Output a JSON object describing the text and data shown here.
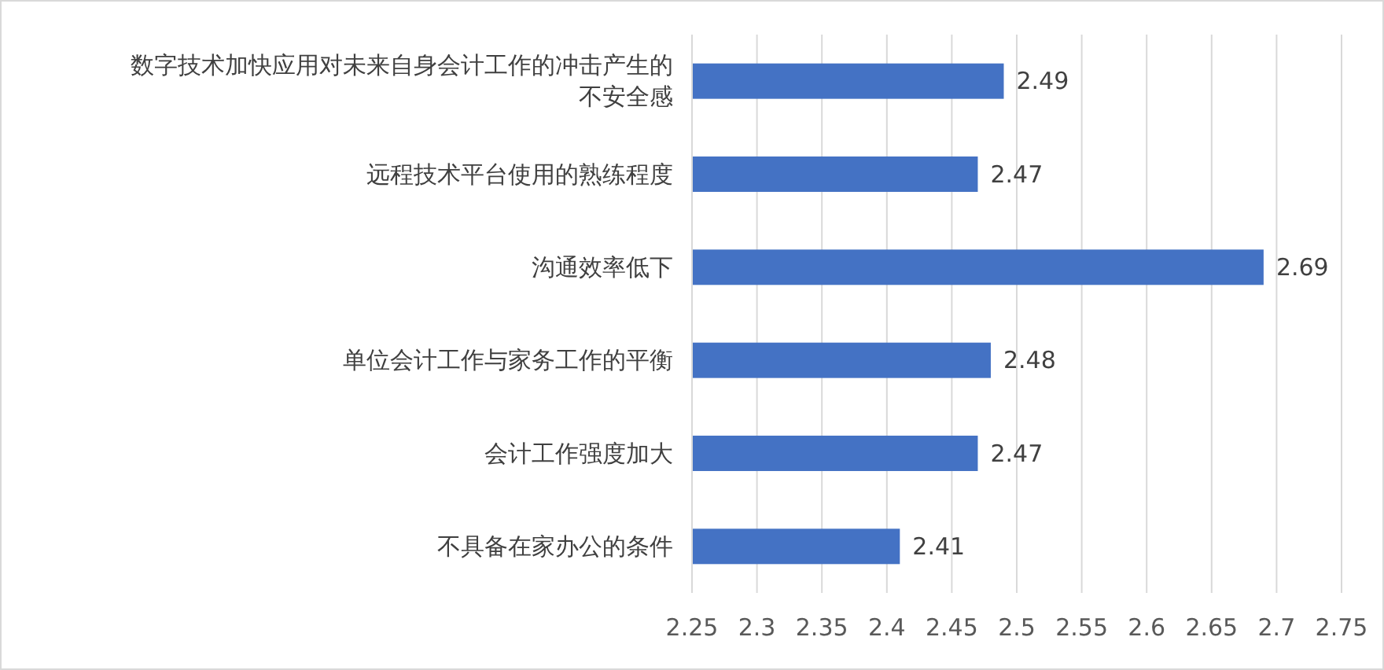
{
  "chart_data": {
    "type": "bar",
    "orientation": "horizontal",
    "categories": [
      "数字技术加快应用对未来自身会计工作的冲击产生的不安全感",
      "远程技术平台使用的熟练程度",
      "沟通效率低下",
      "单位会计工作与家务工作的平衡",
      "会计工作强度加大",
      "不具备在家办公的条件"
    ],
    "values": [
      2.49,
      2.47,
      2.69,
      2.48,
      2.47,
      2.41
    ],
    "color": "#4472c4",
    "xlim": [
      2.25,
      2.75
    ],
    "xticks": [
      2.25,
      2.3,
      2.35,
      2.4,
      2.45,
      2.5,
      2.55,
      2.6,
      2.65,
      2.7,
      2.75
    ],
    "grid": "x",
    "data_labels": true
  }
}
